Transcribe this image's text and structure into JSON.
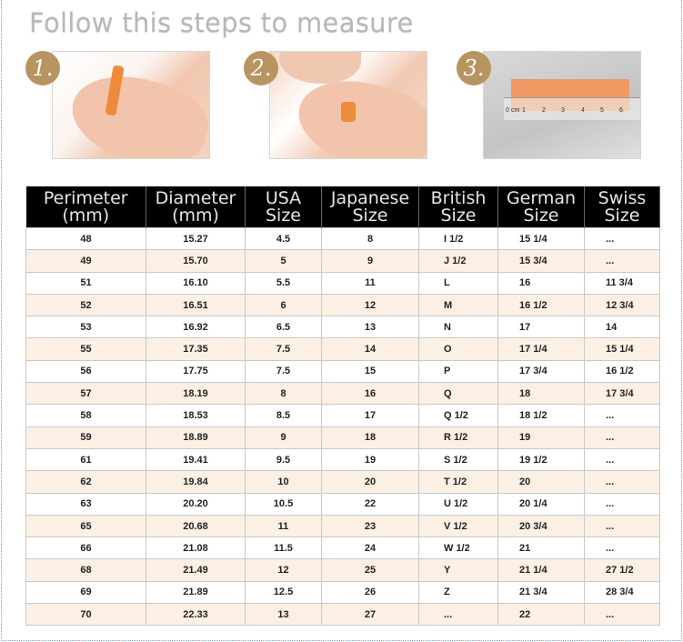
{
  "title": "Follow this steps to measure",
  "steps": [
    {
      "number": "1.",
      "image": "wrap-paper-strip-around-finger"
    },
    {
      "number": "2.",
      "image": "mark-where-strip-overlaps"
    },
    {
      "number": "3.",
      "image": "measure-strip-with-ruler",
      "ruler_labels": [
        "0",
        "cm",
        "1",
        "2",
        "3",
        "4",
        "5",
        "6"
      ]
    }
  ],
  "colors": {
    "header_bg": "#000000",
    "header_text": "#e6e6e6",
    "alt_row": "#fcefe3",
    "badge": "#b89460",
    "title": "#b8b8b8"
  },
  "table": {
    "headers": [
      [
        "Perimeter",
        "(mm)"
      ],
      [
        "Diameter",
        "(mm)"
      ],
      [
        "USA",
        "Size"
      ],
      [
        "Japanese",
        "Size"
      ],
      [
        "British",
        "Size"
      ],
      [
        "German",
        "Size"
      ],
      [
        "Swiss",
        "Size"
      ]
    ],
    "rows": [
      [
        "48",
        "15.27",
        "4.5",
        "8",
        "I 1/2",
        "15 1/4",
        "..."
      ],
      [
        "49",
        "15.70",
        "5",
        "9",
        "J 1/2",
        "15 3/4",
        "..."
      ],
      [
        "51",
        "16.10",
        "5.5",
        "11",
        "L",
        "16",
        "11 3/4"
      ],
      [
        "52",
        "16.51",
        "6",
        "12",
        "M",
        "16 1/2",
        "12 3/4"
      ],
      [
        "53",
        "16.92",
        "6.5",
        "13",
        "N",
        "17",
        "14"
      ],
      [
        "55",
        "17.35",
        "7.5",
        "14",
        "O",
        "17 1/4",
        "15 1/4"
      ],
      [
        "56",
        "17.75",
        "7.5",
        "15",
        "P",
        "17 3/4",
        "16 1/2"
      ],
      [
        "57",
        "18.19",
        "8",
        "16",
        "Q",
        "18",
        "17 3/4"
      ],
      [
        "58",
        "18.53",
        "8.5",
        "17",
        "Q 1/2",
        "18 1/2",
        "..."
      ],
      [
        "59",
        "18.89",
        "9",
        "18",
        "R 1/2",
        "19",
        "..."
      ],
      [
        "61",
        "19.41",
        "9.5",
        "19",
        "S 1/2",
        "19 1/2",
        "..."
      ],
      [
        "62",
        "19.84",
        "10",
        "20",
        "T 1/2",
        "20",
        "..."
      ],
      [
        "63",
        "20.20",
        "10.5",
        "22",
        "U 1/2",
        "20 1/4",
        "..."
      ],
      [
        "65",
        "20.68",
        "11",
        "23",
        "V 1/2",
        "20 3/4",
        "..."
      ],
      [
        "66",
        "21.08",
        "11.5",
        "24",
        "W 1/2",
        "21",
        "..."
      ],
      [
        "68",
        "21.49",
        "12",
        "25",
        "Y",
        "21 1/4",
        "27 1/2"
      ],
      [
        "69",
        "21.89",
        "12.5",
        "26",
        "Z",
        "21 3/4",
        "28 3/4"
      ],
      [
        "70",
        "22.33",
        "13",
        "27",
        "...",
        "22",
        "..."
      ]
    ]
  }
}
